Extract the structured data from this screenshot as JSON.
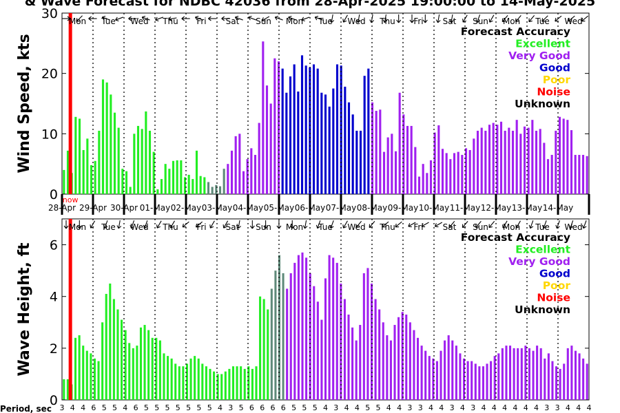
{
  "chart_data": {
    "type": "bar",
    "title": "& Wave Forecast for NDBC 42036 from 28-Apr-2025 19:00:00 to 14-May-2025",
    "period_label": "Period, sec",
    "days": [
      "Mon",
      "Tue",
      "Wed",
      "Thu",
      "Fri",
      "Sat",
      "Sun",
      "Mon",
      "Tue",
      "Wed",
      "Thu",
      "Fri",
      "Sat",
      "Sun",
      "Mon",
      "Tue",
      "Wed"
    ],
    "dates": [
      "28-Apr",
      "29-Apr",
      "30-Apr",
      "01-May",
      "02-May",
      "03-May",
      "04-May",
      "05-May",
      "06-May",
      "07-May",
      "08-May",
      "09-May",
      "10-May",
      "11-May",
      "12-May",
      "13-May",
      "14-May"
    ],
    "now_label": "now",
    "legend": {
      "title": "Forecast Accuracy",
      "items": [
        {
          "label": "Excellent",
          "color": "#22ee22"
        },
        {
          "label": "Very Good",
          "color": "#a020f0"
        },
        {
          "label": "Good",
          "color": "#0000cd"
        },
        {
          "label": "Poor",
          "color": "#ffd700"
        },
        {
          "label": "Noise",
          "color": "#ff0000"
        },
        {
          "label": "Unknown",
          "color": "#000000"
        }
      ]
    },
    "panels": [
      {
        "name": "wind",
        "ylabel": "Wind Speed, kts",
        "ylim": [
          0,
          30
        ],
        "yticks": [
          0,
          10,
          20,
          30
        ],
        "values": [
          4,
          7.2,
          3.5,
          12.8,
          12.5,
          7.3,
          9.2,
          4.8,
          5.5,
          10.5,
          19,
          18.5,
          16.5,
          13.5,
          11,
          4.2,
          3.8,
          1.2,
          10,
          11.3,
          10.8,
          13.7,
          10.5,
          7,
          0.8,
          2.5,
          5,
          4.2,
          5.5,
          5.6,
          5.6,
          2.8,
          3.2,
          2.5,
          7.2,
          3,
          2.8,
          2,
          1.2,
          1.5,
          1.3,
          4.2,
          5,
          7.2,
          9.6,
          10,
          3.8,
          5.8,
          7.6,
          6.5,
          11.8,
          25.3,
          18,
          15,
          22.5,
          22,
          20.8,
          16.8,
          19.5,
          21.5,
          17,
          23,
          21.3,
          21,
          21.5,
          20.8,
          16.8,
          16.5,
          14.5,
          17.5,
          21.5,
          21.3,
          17.8,
          15.2,
          13.2,
          10.5,
          10.5,
          19.6,
          20.8,
          15.2,
          13.8,
          14,
          7,
          9.4,
          10,
          7.1,
          16.8,
          13.2,
          11.3,
          11.3,
          7.8,
          2.9,
          5,
          3.5,
          5.6,
          10.2,
          11.4,
          7.5,
          6.8,
          5.8,
          6.8,
          7,
          6.5,
          7.6,
          7.3,
          9.2,
          10.5,
          11,
          10.5,
          11.5,
          11.8,
          11.5,
          12,
          10.5,
          11,
          10.5,
          12.3,
          10,
          11.2,
          11,
          12.3,
          10.5,
          10.8,
          8.5,
          5.8,
          6.5,
          10.5,
          12.8,
          12.5,
          12.3,
          10.6,
          6.5,
          6.5,
          6.5,
          6.3
        ],
        "colors": [
          "g",
          "g",
          "g",
          "g",
          "g",
          "g",
          "g",
          "g",
          "g",
          "g",
          "g",
          "g",
          "g",
          "g",
          "g",
          "g",
          "g",
          "g",
          "g",
          "g",
          "g",
          "g",
          "g",
          "g",
          "g",
          "g",
          "g",
          "g",
          "g",
          "g",
          "g",
          "g",
          "g",
          "g",
          "g",
          "g",
          "g",
          "s",
          "s",
          "s",
          "s",
          "s",
          "p",
          "p",
          "p",
          "p",
          "p",
          "p",
          "p",
          "p",
          "p",
          "p",
          "p",
          "p",
          "p",
          "p",
          "b",
          "b",
          "b",
          "b",
          "b",
          "b",
          "b",
          "b",
          "b",
          "b",
          "b",
          "b",
          "b",
          "b",
          "b",
          "b",
          "b",
          "b",
          "b",
          "b",
          "b",
          "b",
          "b",
          "p",
          "p",
          "p",
          "p",
          "p",
          "p",
          "p",
          "p",
          "p",
          "p",
          "p",
          "p",
          "p",
          "p",
          "p",
          "p",
          "p",
          "p",
          "p",
          "p",
          "p",
          "p",
          "p",
          "p",
          "p",
          "p",
          "p",
          "p",
          "p",
          "p",
          "p",
          "p",
          "p",
          "p",
          "p",
          "p",
          "p",
          "p",
          "p",
          "p",
          "p",
          "p",
          "p",
          "p",
          "p",
          "p",
          "p",
          "p",
          "p",
          "p",
          "p",
          "p",
          "p",
          "p",
          "p",
          "p",
          "p"
        ]
      },
      {
        "name": "wave",
        "ylabel": "Wave Height, ft",
        "ylim": [
          0,
          7
        ],
        "yticks": [
          0,
          2,
          4,
          6
        ],
        "values": [
          0.8,
          0.8,
          0.6,
          2.4,
          2.5,
          2.1,
          1.9,
          1.8,
          1.6,
          1.5,
          3,
          4.1,
          4.5,
          3.9,
          3.5,
          3.1,
          2.7,
          2.2,
          2,
          2.1,
          2.8,
          2.9,
          2.7,
          2.4,
          2.4,
          2.3,
          1.8,
          1.7,
          1.6,
          1.4,
          1.3,
          1.3,
          1.4,
          1.6,
          1.7,
          1.6,
          1.4,
          1.3,
          1.2,
          1.1,
          1,
          1,
          1.1,
          1.2,
          1.3,
          1.3,
          1.3,
          1.2,
          1.3,
          1.2,
          1.3,
          4,
          3.9,
          3.5,
          4.3,
          5,
          5.6,
          4.9,
          4.3,
          4.9,
          5.3,
          5.6,
          5.7,
          5.5,
          4.9,
          4.4,
          3.8,
          3.1,
          4.7,
          5.6,
          5.5,
          5.3,
          4.5,
          3.9,
          3.3,
          2.8,
          2.3,
          2.9,
          4.9,
          5.1,
          4.5,
          3.9,
          3.5,
          3,
          2.5,
          2.3,
          2.9,
          3.2,
          3.4,
          3.3,
          3,
          2.7,
          2.4,
          2.1,
          1.9,
          1.7,
          1.6,
          1.5,
          1.9,
          2.3,
          2.5,
          2.3,
          2.1,
          1.8,
          1.6,
          1.5,
          1.5,
          1.4,
          1.3,
          1.3,
          1.4,
          1.5,
          1.7,
          1.8,
          2,
          2.1,
          2.1,
          2,
          2,
          2,
          2.1,
          2,
          1.9,
          2.1,
          2,
          1.6,
          1.8,
          1.5,
          1.3,
          1.2,
          1.4,
          2,
          2.1,
          1.9,
          1.8,
          1.6,
          1.4
        ],
        "colors": [
          "g",
          "g",
          "g",
          "g",
          "g",
          "g",
          "g",
          "g",
          "g",
          "g",
          "g",
          "g",
          "g",
          "g",
          "g",
          "g",
          "g",
          "g",
          "g",
          "g",
          "g",
          "g",
          "g",
          "g",
          "g",
          "g",
          "g",
          "g",
          "g",
          "g",
          "g",
          "g",
          "g",
          "g",
          "g",
          "g",
          "g",
          "g",
          "g",
          "g",
          "g",
          "g",
          "g",
          "g",
          "g",
          "g",
          "g",
          "g",
          "g",
          "g",
          "g",
          "g",
          "g",
          "g",
          "s",
          "s",
          "s",
          "s",
          "p",
          "p",
          "p",
          "p",
          "p",
          "p",
          "p",
          "p",
          "p",
          "p",
          "p",
          "p",
          "p",
          "p",
          "p",
          "p",
          "p",
          "p",
          "p",
          "p",
          "p",
          "p",
          "p",
          "p",
          "p",
          "p",
          "p",
          "p",
          "p",
          "p",
          "p",
          "p",
          "p",
          "p",
          "p",
          "p",
          "p",
          "p",
          "p",
          "p",
          "p",
          "p",
          "p",
          "p",
          "p",
          "p",
          "p",
          "p",
          "p",
          "p",
          "p",
          "p",
          "p",
          "p",
          "p",
          "p",
          "p",
          "p",
          "p",
          "p",
          "p",
          "p",
          "p",
          "p",
          "p",
          "p",
          "p",
          "p",
          "p",
          "p",
          "p",
          "p",
          "p",
          "p",
          "p",
          "p",
          "p",
          "p",
          "p",
          "p",
          "p",
          "p"
        ]
      }
    ],
    "color_key": {
      "g": "#22ee22",
      "p": "#a020f0",
      "b": "#0000cd",
      "s": "#5f8a7a"
    },
    "periods": [
      "3",
      "4",
      "4",
      "6",
      "5",
      "5",
      "4",
      "6",
      "5",
      "5",
      "5",
      "5",
      "5",
      "5",
      "5",
      "4",
      "3",
      "5",
      "6",
      "6",
      "6",
      "6",
      "5",
      "5",
      "5",
      "4",
      "3",
      "4",
      "4",
      "5",
      "5",
      "4",
      "4",
      "3",
      "3",
      "4",
      "4",
      "3",
      "4",
      "3",
      "4",
      "4",
      "4",
      "4",
      "4",
      "4",
      "3",
      "3",
      "4",
      "4",
      "4"
    ],
    "direction_angles_top": [
      0,
      135,
      135,
      130,
      180,
      200,
      200,
      180,
      160,
      160,
      200,
      180,
      150,
      200,
      200,
      210,
      160,
      110,
      170,
      150,
      180,
      190,
      200,
      200,
      190,
      180,
      90,
      180,
      200,
      200,
      180,
      180,
      200,
      150,
      150,
      200,
      200,
      230,
      230,
      200,
      200,
      160,
      160,
      200,
      120,
      100,
      100,
      120,
      120,
      120,
      100,
      90,
      100,
      90,
      110,
      100,
      90,
      90,
      90,
      90,
      90,
      90,
      90,
      90,
      100,
      100,
      100,
      100,
      100,
      120,
      120,
      110,
      110,
      120,
      120,
      130,
      130,
      130,
      130,
      130,
      130,
      135,
      135,
      135,
      135,
      140,
      140,
      140,
      140,
      140,
      140,
      140
    ],
    "direction_angles_bottom": [
      90,
      90,
      90,
      120,
      110,
      110,
      110,
      100,
      100,
      110,
      110,
      110,
      120,
      120,
      120,
      120,
      130,
      140,
      140,
      140,
      120,
      120,
      120,
      100,
      100,
      100,
      90,
      90,
      90,
      90,
      90,
      90,
      90,
      90,
      100,
      100,
      110,
      110,
      110,
      120,
      130,
      130,
      130,
      130,
      140,
      140,
      140,
      140,
      150,
      150,
      150,
      150,
      150,
      150,
      140,
      130,
      130,
      130,
      130,
      130,
      130,
      130,
      120,
      120,
      120,
      120,
      110,
      110,
      110,
      110,
      110,
      110,
      110,
      110,
      110,
      110
    ]
  }
}
